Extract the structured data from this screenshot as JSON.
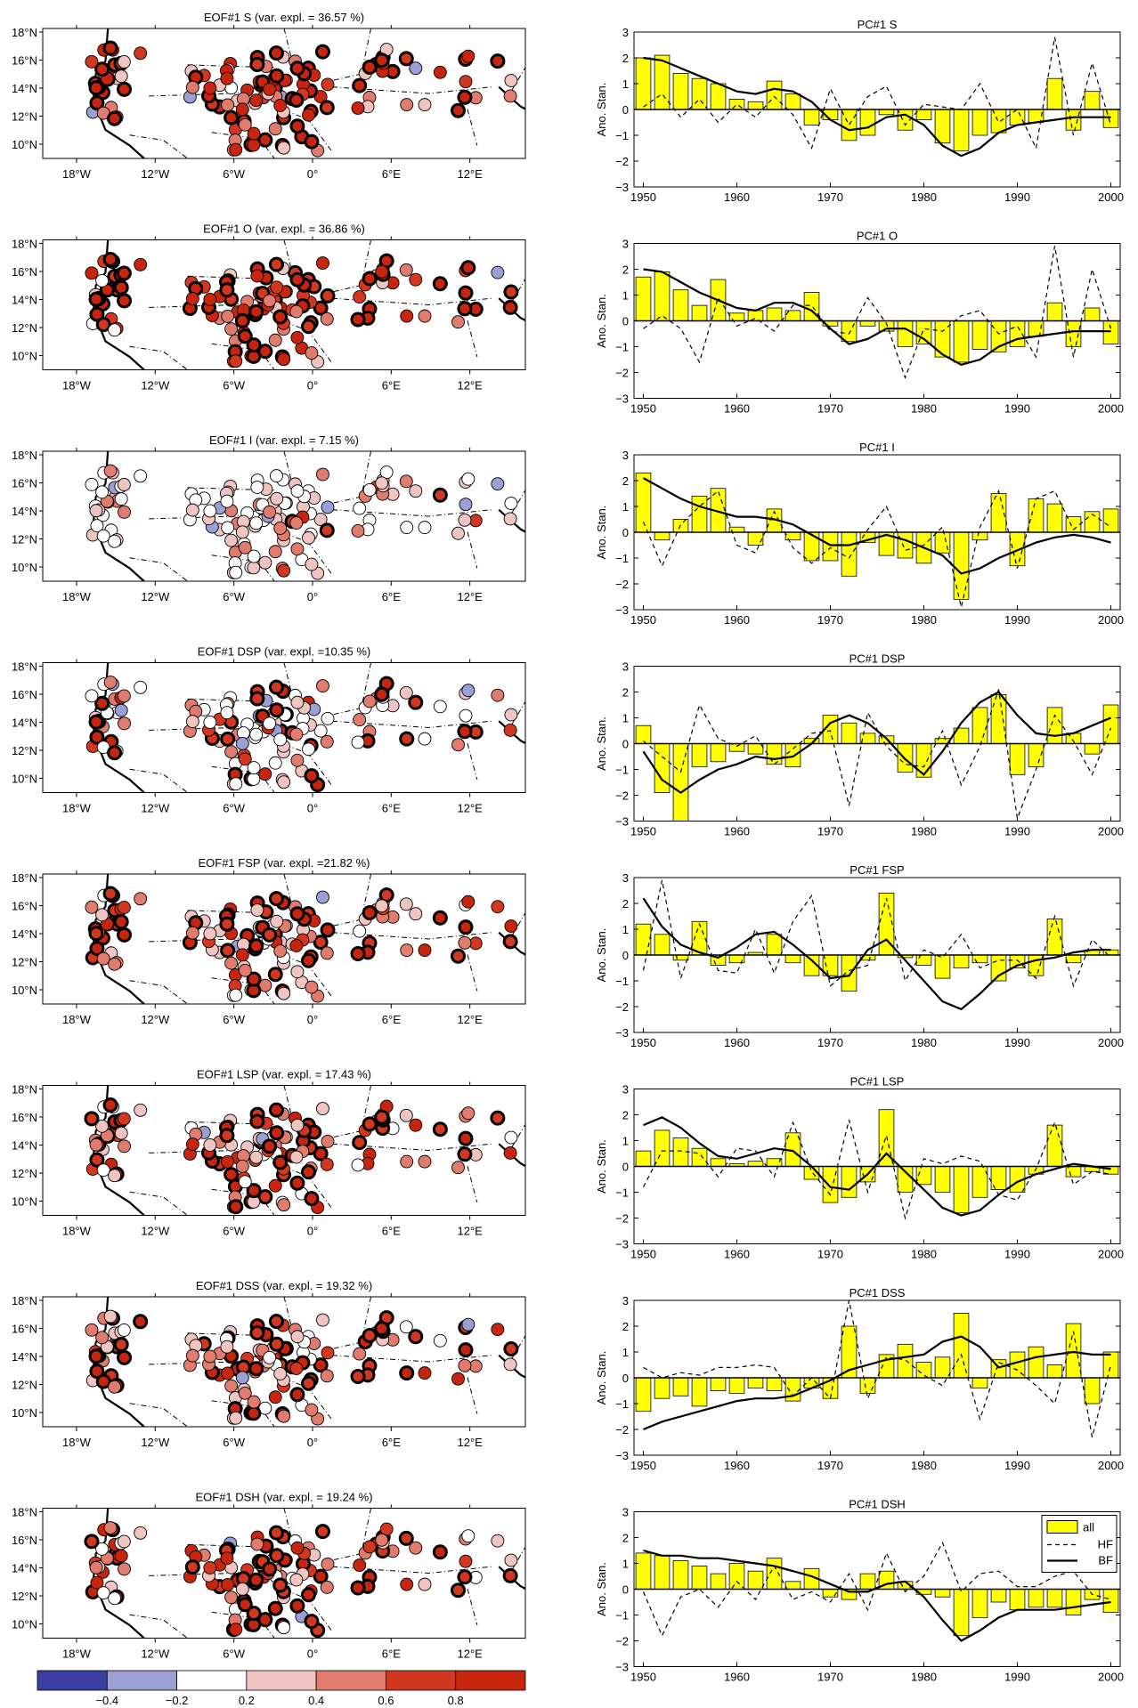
{
  "colors": {
    "bar_fill": "#ffff00",
    "bar_stroke": "#000000",
    "map_bins": [
      "#3b3fa3",
      "#9a9fd6",
      "#ffffff",
      "#f0c4c0",
      "#e07b6e",
      "#d2381f",
      "#c8250f"
    ]
  },
  "colorbar": {
    "ticks": [
      "−0.4",
      "−0.2",
      "0.2",
      "0.4",
      "0.6",
      "0.8"
    ]
  },
  "map_axes": {
    "lon_ticks": [
      "18°W",
      "12°W",
      "6°W",
      "0°",
      "6°E",
      "12°E"
    ],
    "lat_ticks": [
      "18°N",
      "16°N",
      "14°N",
      "12°N",
      "10°N"
    ]
  },
  "pc_axes": {
    "ylabel": "Ano. Stan.",
    "yticks": [
      "3",
      "2",
      "1",
      "0",
      "−1",
      "−2",
      "−3"
    ],
    "xticks": [
      "1950",
      "1960",
      "1970",
      "1980",
      "1990",
      "2000"
    ],
    "ylim": [
      -3,
      3
    ],
    "xlim": [
      1949,
      2001
    ]
  },
  "legend": {
    "items": [
      "all",
      "HF",
      "BF"
    ]
  },
  "chart_data": [
    {
      "type": "map",
      "title": "EOF#1 S  (var. expl. = 36.57 %)"
    },
    {
      "type": "bar",
      "title": "PC#1 S",
      "x": [
        1950,
        1952,
        1954,
        1956,
        1958,
        1960,
        1962,
        1964,
        1966,
        1968,
        1970,
        1972,
        1974,
        1976,
        1978,
        1980,
        1982,
        1984,
        1986,
        1988,
        1990,
        1992,
        1994,
        1996,
        1998,
        2000
      ],
      "values": [
        2.0,
        2.1,
        1.4,
        1.2,
        1.0,
        0.4,
        0.3,
        1.1,
        0.6,
        -0.6,
        -0.4,
        -1.2,
        -1.0,
        -0.2,
        -0.8,
        -0.4,
        -1.3,
        -1.6,
        -1.0,
        -0.9,
        -0.6,
        -0.5,
        1.2,
        -0.8,
        0.7,
        -0.7
      ],
      "bf": [
        2.0,
        1.9,
        1.6,
        1.3,
        1.0,
        0.7,
        0.6,
        0.8,
        0.7,
        0.3,
        -0.4,
        -0.8,
        -0.7,
        -0.3,
        -0.2,
        -0.6,
        -1.4,
        -1.8,
        -1.5,
        -0.9,
        -0.6,
        -0.5,
        -0.4,
        -0.3,
        -0.3,
        -0.3
      ],
      "hf": [
        0.1,
        0.6,
        -0.3,
        0.4,
        -0.5,
        0.2,
        -0.3,
        0.5,
        -0.2,
        -1.5,
        0.8,
        -0.6,
        0.5,
        0.9,
        -0.6,
        0.2,
        0.1,
        0.0,
        1.0,
        -0.5,
        0.0,
        -1.5,
        2.8,
        -1.0,
        1.8,
        -0.6
      ]
    },
    {
      "type": "map",
      "title": "EOF#1 O  (var. expl. = 36.86 %)"
    },
    {
      "type": "bar",
      "title": "PC#1 O",
      "x": [
        1950,
        1952,
        1954,
        1956,
        1958,
        1960,
        1962,
        1964,
        1966,
        1968,
        1970,
        1972,
        1974,
        1976,
        1978,
        1980,
        1982,
        1984,
        1986,
        1988,
        1990,
        1992,
        1994,
        1996,
        1998,
        2000
      ],
      "values": [
        1.7,
        1.9,
        1.2,
        0.6,
        1.6,
        0.3,
        0.4,
        0.5,
        0.4,
        1.1,
        -0.2,
        -0.8,
        -0.2,
        -0.4,
        -1.0,
        -0.9,
        -1.4,
        -1.6,
        -1.1,
        -1.2,
        -1.0,
        -0.6,
        0.7,
        -1.0,
        0.5,
        -0.9
      ],
      "bf": [
        2.0,
        1.9,
        1.5,
        1.1,
        0.8,
        0.5,
        0.4,
        0.7,
        0.7,
        0.4,
        -0.3,
        -0.9,
        -0.7,
        -0.3,
        -0.3,
        -0.7,
        -1.3,
        -1.7,
        -1.5,
        -1.0,
        -0.7,
        -0.6,
        -0.5,
        -0.4,
        -0.4,
        -0.4
      ],
      "hf": [
        -0.3,
        0.2,
        -0.3,
        -1.6,
        0.9,
        -0.2,
        0.1,
        -0.4,
        0.6,
        0.6,
        -0.4,
        -0.5,
        0.9,
        -0.1,
        -2.2,
        -0.3,
        -0.4,
        0.2,
        0.4,
        -0.5,
        -0.2,
        -1.4,
        2.9,
        -1.4,
        2.0,
        -0.3
      ]
    },
    {
      "type": "map",
      "title": "EOF#1 I  (var. expl. = 7.15 %)"
    },
    {
      "type": "bar",
      "title": "PC#1 I",
      "x": [
        1950,
        1952,
        1954,
        1956,
        1958,
        1960,
        1962,
        1964,
        1966,
        1968,
        1970,
        1972,
        1974,
        1976,
        1978,
        1980,
        1982,
        1984,
        1986,
        1988,
        1990,
        1992,
        1994,
        1996,
        1998,
        2000
      ],
      "values": [
        2.3,
        -0.3,
        0.5,
        1.4,
        1.7,
        0.2,
        -0.5,
        0.9,
        -0.3,
        -1.1,
        -1.1,
        -1.7,
        -0.4,
        -0.9,
        -1.0,
        -1.2,
        -0.8,
        -2.6,
        -0.3,
        1.5,
        -1.3,
        1.3,
        1.1,
        0.6,
        0.8,
        0.9
      ],
      "bf": [
        2.1,
        1.7,
        1.3,
        1.0,
        0.8,
        0.6,
        0.6,
        0.5,
        0.3,
        -0.1,
        -0.5,
        -0.5,
        -0.3,
        -0.1,
        -0.3,
        -0.6,
        -0.9,
        -1.6,
        -1.4,
        -1.0,
        -0.7,
        -0.4,
        -0.2,
        -0.1,
        -0.2,
        -0.4
      ],
      "hf": [
        0.4,
        -1.3,
        0.3,
        1.0,
        1.6,
        -0.5,
        -0.8,
        0.8,
        -0.6,
        -1.2,
        -0.6,
        -1.0,
        0.1,
        1.0,
        -0.7,
        -0.5,
        0.2,
        -2.9,
        0.2,
        1.6,
        -1.4,
        1.3,
        1.6,
        0.1,
        0.7,
        0.2
      ]
    },
    {
      "type": "map",
      "title": "EOF#1 DSP  (var. expl. =10.35 %)"
    },
    {
      "type": "bar",
      "title": "PC#1 DSP",
      "x": [
        1950,
        1952,
        1954,
        1956,
        1958,
        1960,
        1962,
        1964,
        1966,
        1968,
        1970,
        1972,
        1974,
        1976,
        1978,
        1980,
        1982,
        1984,
        1986,
        1988,
        1990,
        1992,
        1994,
        1996,
        1998,
        2000
      ],
      "values": [
        0.7,
        -1.9,
        -3.0,
        -0.9,
        -0.7,
        -0.3,
        -0.4,
        -0.8,
        -0.9,
        0.2,
        1.1,
        0.8,
        0.4,
        0.3,
        -1.1,
        -1.3,
        0.2,
        0.6,
        1.4,
        1.9,
        -1.2,
        -0.9,
        1.4,
        0.4,
        -0.4,
        1.5
      ],
      "bf": [
        -0.3,
        -1.4,
        -1.9,
        -1.4,
        -1.0,
        -0.8,
        -0.5,
        -0.6,
        -0.5,
        0.0,
        0.8,
        1.1,
        0.8,
        0.2,
        -0.6,
        -1.2,
        -0.3,
        0.8,
        1.6,
        2.0,
        1.1,
        0.4,
        0.3,
        0.4,
        0.7,
        1.0
      ],
      "hf": [
        0.1,
        -0.5,
        -1.1,
        1.5,
        0.2,
        -0.1,
        0.3,
        -0.8,
        -0.2,
        0.4,
        0.5,
        -2.4,
        1.2,
        -0.1,
        -0.8,
        -0.9,
        0.5,
        -1.6,
        -0.1,
        2.1,
        -2.9,
        -1.0,
        1.1,
        0.1,
        -1.2,
        0.6
      ]
    },
    {
      "type": "map",
      "title": "EOF#1 FSP  (var. expl. =21.82 %)"
    },
    {
      "type": "bar",
      "title": "PC#1 FSP",
      "x": [
        1950,
        1952,
        1954,
        1956,
        1958,
        1960,
        1962,
        1964,
        1966,
        1968,
        1970,
        1972,
        1974,
        1976,
        1978,
        1980,
        1982,
        1984,
        1986,
        1988,
        1990,
        1992,
        1994,
        1996,
        1998,
        2000
      ],
      "values": [
        1.2,
        0.8,
        -0.2,
        1.3,
        -0.4,
        -0.3,
        0.1,
        0.8,
        -0.3,
        -0.8,
        -0.8,
        -1.4,
        -0.2,
        2.4,
        -0.1,
        -0.4,
        -0.9,
        -0.5,
        -0.3,
        -1.0,
        -0.5,
        -0.8,
        1.4,
        -0.3,
        0.2,
        0.2
      ],
      "bf": [
        2.2,
        1.1,
        0.4,
        0.1,
        -0.1,
        0.3,
        0.8,
        0.9,
        0.4,
        -0.2,
        -0.9,
        -0.8,
        0.2,
        0.6,
        -0.2,
        -1.0,
        -1.8,
        -2.1,
        -1.5,
        -0.8,
        -0.4,
        -0.2,
        -0.1,
        0.1,
        0.2,
        0.2
      ],
      "hf": [
        -0.6,
        2.9,
        -0.9,
        1.2,
        -0.6,
        -0.7,
        1.0,
        -0.7,
        1.3,
        2.3,
        -1.2,
        -0.6,
        -0.4,
        2.2,
        -1.0,
        0.2,
        -0.1,
        0.8,
        -0.5,
        -0.2,
        -0.2,
        -0.9,
        1.5,
        -1.2,
        0.6,
        -0.1
      ]
    },
    {
      "type": "map",
      "title": "EOF#1 LSP  (var. expl. = 17.43 %)"
    },
    {
      "type": "bar",
      "title": "PC#1 LSP",
      "x": [
        1950,
        1952,
        1954,
        1956,
        1958,
        1960,
        1962,
        1964,
        1966,
        1968,
        1970,
        1972,
        1974,
        1976,
        1978,
        1980,
        1982,
        1984,
        1986,
        1988,
        1990,
        1992,
        1994,
        1996,
        1998,
        2000
      ],
      "values": [
        0.6,
        1.4,
        1.1,
        0.7,
        0.3,
        0.1,
        0.2,
        0.3,
        1.3,
        -0.5,
        -1.4,
        -1.2,
        -0.6,
        2.2,
        -1.0,
        -0.7,
        -1.0,
        -1.8,
        -1.2,
        -0.9,
        -1.0,
        -0.3,
        1.6,
        -0.4,
        -0.2,
        -0.3
      ],
      "bf": [
        1.6,
        1.9,
        1.5,
        0.9,
        0.4,
        0.3,
        0.5,
        0.7,
        0.6,
        0.0,
        -0.8,
        -0.9,
        -0.3,
        0.5,
        -0.2,
        -0.9,
        -1.6,
        -1.9,
        -1.7,
        -1.1,
        -0.6,
        -0.3,
        -0.1,
        0.1,
        0.0,
        -0.1
      ],
      "hf": [
        -0.8,
        0.6,
        0.6,
        0.5,
        -0.4,
        0.7,
        0.6,
        -0.4,
        1.7,
        -0.2,
        -1.1,
        1.8,
        -1.0,
        1.2,
        -2.0,
        0.3,
        0.1,
        0.4,
        0.2,
        -1.1,
        -1.3,
        -0.1,
        1.7,
        -0.7,
        -0.2,
        -0.3
      ]
    },
    {
      "type": "map",
      "title": "EOF#1 DSS  (var. expl. = 19.32 %)"
    },
    {
      "type": "bar",
      "title": "PC#1 DSS",
      "x": [
        1950,
        1952,
        1954,
        1956,
        1958,
        1960,
        1962,
        1964,
        1966,
        1968,
        1970,
        1972,
        1974,
        1976,
        1978,
        1980,
        1982,
        1984,
        1986,
        1988,
        1990,
        1992,
        1994,
        1996,
        1998,
        2000
      ],
      "values": [
        -1.3,
        -0.8,
        -0.7,
        -1.1,
        -0.5,
        -0.6,
        -0.4,
        -0.5,
        -0.9,
        -0.4,
        -0.8,
        2.0,
        -0.6,
        0.9,
        1.3,
        0.6,
        0.8,
        2.5,
        -0.4,
        0.7,
        1.0,
        1.2,
        0.5,
        2.1,
        -1.0,
        1.0
      ],
      "bf": [
        -2.0,
        -1.7,
        -1.5,
        -1.3,
        -1.1,
        -0.9,
        -0.8,
        -0.8,
        -0.7,
        -0.4,
        -0.1,
        0.3,
        0.5,
        0.7,
        0.8,
        0.9,
        1.4,
        1.6,
        1.2,
        0.4,
        0.6,
        0.8,
        0.9,
        1.0,
        0.9,
        0.9
      ],
      "hf": [
        0.4,
        0.0,
        0.2,
        0.1,
        0.4,
        0.4,
        0.5,
        0.4,
        -0.7,
        0.0,
        -0.8,
        3.0,
        -0.8,
        0.8,
        0.7,
        0.1,
        -0.3,
        0.9,
        -1.6,
        0.6,
        0.3,
        -0.3,
        -1.0,
        1.8,
        -2.3,
        0.5
      ]
    },
    {
      "type": "map",
      "title": "EOF#1 DSH  (var. expl. = 19.24 %)"
    },
    {
      "type": "bar",
      "title": "PC#1 DSH",
      "x": [
        1950,
        1952,
        1954,
        1956,
        1958,
        1960,
        1962,
        1964,
        1966,
        1968,
        1970,
        1972,
        1974,
        1976,
        1978,
        1980,
        1982,
        1984,
        1986,
        1988,
        1990,
        1992,
        1994,
        1996,
        1998,
        2000
      ],
      "values": [
        1.4,
        1.3,
        1.1,
        0.9,
        0.6,
        1.0,
        0.7,
        1.2,
        0.3,
        0.8,
        -0.3,
        -0.4,
        0.6,
        0.7,
        0.3,
        -0.2,
        -0.3,
        -1.8,
        -1.1,
        -0.5,
        -0.8,
        -0.7,
        -0.7,
        -1.0,
        -0.4,
        -0.9
      ],
      "bf": [
        1.5,
        1.3,
        1.3,
        1.2,
        1.2,
        1.1,
        1.0,
        0.9,
        0.7,
        0.5,
        0.2,
        -0.1,
        -0.1,
        0.2,
        0.3,
        -0.3,
        -1.2,
        -2.0,
        -1.6,
        -1.1,
        -0.8,
        -0.8,
        -0.8,
        -0.7,
        -0.6,
        -0.5
      ],
      "hf": [
        -0.1,
        -1.8,
        -0.3,
        0.0,
        -0.7,
        0.3,
        -0.4,
        0.9,
        -0.4,
        -0.1,
        -0.5,
        0.6,
        -0.8,
        1.4,
        -0.1,
        0.5,
        1.8,
        -0.1,
        0.6,
        0.7,
        0.1,
        0.1,
        0.5,
        0.7,
        -0.2,
        -0.4
      ]
    }
  ]
}
